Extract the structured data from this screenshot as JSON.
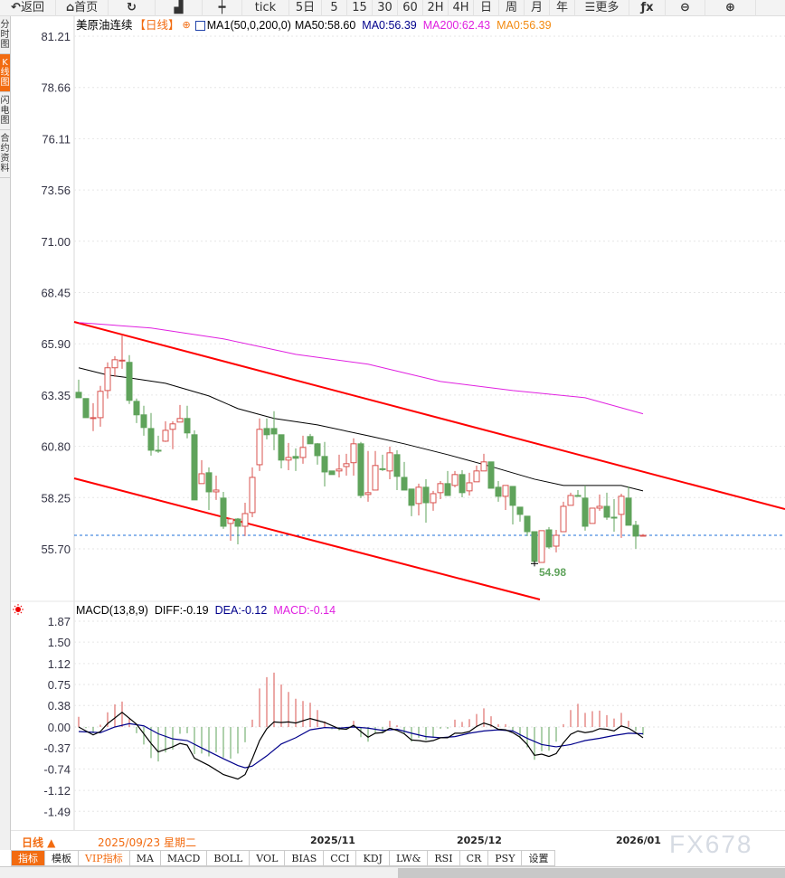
{
  "toolbar": {
    "items": [
      {
        "label": "返回",
        "icon": "back-arrow-icon"
      },
      {
        "label": "首页",
        "icon": "home-icon"
      },
      {
        "label": "",
        "icon": "refresh-icon"
      },
      {
        "label": "",
        "icon": "bar-chart-icon"
      },
      {
        "label": "",
        "icon": "candlestick-icon"
      },
      {
        "label": "tick"
      },
      {
        "label": "5日"
      },
      {
        "label": "5"
      },
      {
        "label": "15"
      },
      {
        "label": "30"
      },
      {
        "label": "60"
      },
      {
        "label": "2H"
      },
      {
        "label": "4H"
      },
      {
        "label": "日"
      },
      {
        "label": "周"
      },
      {
        "label": "月"
      },
      {
        "label": "年"
      },
      {
        "label": "更多",
        "icon": "menu-icon"
      },
      {
        "label": "",
        "icon": "fx-formula-icon"
      },
      {
        "label": "",
        "icon": "zoom-out-icon"
      },
      {
        "label": "",
        "icon": "zoom-in-icon"
      }
    ]
  },
  "side_tabs": [
    {
      "label": "分时图"
    },
    {
      "label": "K线图",
      "active": true
    },
    {
      "label": "闪电图"
    },
    {
      "label": "合约资料"
    }
  ],
  "main_header": {
    "symbol": "美原油连续",
    "period": "【日线】",
    "indicator": "MA1(50,0,200,0)",
    "ma50": "MA50:58.60",
    "ma0a": "MA0:56.39",
    "ma200": "MA200:62.43",
    "ma0b": "MA0:56.39"
  },
  "macd_header": {
    "name": "MACD(13,8,9)",
    "diff": "DIFF:-0.19",
    "dea": "DEA:-0.12",
    "macd": "MACD:-0.14"
  },
  "colors": {
    "up": "#d9534f",
    "down": "#5fa35b",
    "ma50": "#000000",
    "ma200": "#e020e0",
    "channel": "#ff0000",
    "dea": "#00008b",
    "accent": "#f26b10",
    "last_price_line": "#1e6fd9"
  },
  "chart_data": [
    {
      "type": "candlestick",
      "price_ticks": [
        "81.21",
        "78.66",
        "76.11",
        "73.56",
        "71.00",
        "68.45",
        "65.90",
        "63.35",
        "60.80",
        "58.25",
        "55.70"
      ],
      "ylim": [
        54.5,
        81.21
      ],
      "last_price": 56.39,
      "low_label": "54.98",
      "ohlc": [
        [
          63.5,
          64.13,
          63.23,
          63.23
        ],
        [
          63.19,
          63.19,
          62.24,
          62.24
        ],
        [
          62.24,
          62.96,
          61.57,
          62.24
        ],
        [
          62.24,
          63.82,
          61.79,
          63.55
        ],
        [
          63.59,
          64.99,
          63.19,
          64.72
        ],
        [
          64.72,
          65.3,
          64.27,
          65.12
        ],
        [
          65.08,
          66.38,
          64.67,
          65.1
        ],
        [
          64.99,
          65.35,
          62.92,
          63.1
        ],
        [
          63.05,
          63.19,
          61.97,
          62.38
        ],
        [
          62.38,
          62.83,
          61.34,
          61.75
        ],
        [
          61.7,
          62.47,
          60.35,
          60.62
        ],
        [
          60.62,
          61.34,
          60.49,
          60.58
        ],
        [
          61.07,
          62.06,
          61.03,
          61.61
        ],
        [
          61.66,
          62.06,
          60.67,
          61.93
        ],
        [
          62.02,
          62.87,
          62.02,
          62.2
        ],
        [
          62.2,
          62.83,
          61.21,
          61.48
        ],
        [
          61.39,
          61.61,
          58.15,
          58.15
        ],
        [
          58.96,
          60.13,
          58.96,
          59.45
        ],
        [
          59.5,
          59.77,
          57.65,
          58.55
        ],
        [
          58.55,
          59.36,
          58.15,
          58.64
        ],
        [
          58.24,
          58.55,
          56.71,
          56.84
        ],
        [
          56.98,
          57.25,
          56.12,
          57.2
        ],
        [
          57.2,
          57.25,
          55.94,
          56.84
        ],
        [
          56.84,
          58.01,
          56.35,
          57.47
        ],
        [
          57.52,
          59.77,
          57.29,
          59.27
        ],
        [
          59.9,
          62.2,
          59.59,
          61.66
        ],
        [
          61.7,
          62.2,
          61.16,
          61.39
        ],
        [
          61.7,
          62.56,
          60.62,
          61.43
        ],
        [
          61.39,
          61.39,
          59.72,
          60.13
        ],
        [
          60.13,
          60.98,
          59.63,
          60.26
        ],
        [
          60.31,
          60.71,
          59.59,
          60.22
        ],
        [
          60.26,
          61.34,
          59.95,
          60.76
        ],
        [
          61.3,
          61.43,
          60.94,
          60.94
        ],
        [
          60.94,
          60.98,
          59.9,
          60.35
        ],
        [
          60.31,
          61.03,
          58.82,
          59.54
        ],
        [
          59.59,
          59.59,
          59.41,
          59.41
        ],
        [
          59.59,
          60.4,
          59.27,
          59.68
        ],
        [
          59.81,
          60.44,
          59.36,
          59.95
        ],
        [
          60.0,
          61.21,
          59.36,
          60.94
        ],
        [
          60.94,
          61.03,
          58.24,
          58.37
        ],
        [
          58.42,
          60.58,
          58.06,
          58.51
        ],
        [
          58.64,
          60.58,
          58.64,
          59.86
        ],
        [
          59.7,
          60.4,
          59.59,
          59.66
        ],
        [
          59.59,
          60.8,
          59.18,
          60.49
        ],
        [
          60.4,
          60.62,
          58.64,
          59.32
        ],
        [
          59.27,
          60.04,
          58.64,
          58.64
        ],
        [
          58.69,
          58.69,
          57.34,
          57.88
        ],
        [
          57.97,
          58.96,
          57.38,
          58.78
        ],
        [
          58.78,
          59.18,
          57.02,
          58.01
        ],
        [
          58.01,
          58.6,
          57.61,
          58.46
        ],
        [
          58.51,
          59.09,
          58.19,
          58.96
        ],
        [
          58.96,
          59.59,
          58.37,
          58.37
        ],
        [
          58.87,
          59.59,
          58.78,
          59.41
        ],
        [
          59.41,
          59.63,
          58.28,
          58.51
        ],
        [
          58.6,
          59.5,
          58.37,
          59.0
        ],
        [
          59.05,
          59.86,
          59.05,
          59.59
        ],
        [
          59.59,
          60.44,
          59.59,
          60.04
        ],
        [
          60.04,
          60.04,
          58.73,
          58.73
        ],
        [
          58.78,
          59.09,
          58.06,
          58.33
        ],
        [
          58.33,
          58.87,
          57.65,
          58.87
        ],
        [
          58.82,
          58.82,
          56.93,
          57.88
        ],
        [
          57.79,
          57.79,
          57.07,
          57.43
        ],
        [
          57.34,
          57.34,
          56.35,
          56.57
        ],
        [
          56.57,
          56.57,
          54.98,
          55.09
        ],
        [
          55.04,
          56.62,
          55.04,
          56.62
        ],
        [
          56.66,
          56.8,
          55.72,
          55.81
        ],
        [
          55.85,
          56.66,
          55.54,
          56.39
        ],
        [
          56.57,
          58.06,
          56.57,
          57.83
        ],
        [
          57.88,
          58.51,
          57.88,
          58.37
        ],
        [
          58.37,
          58.64,
          58.33,
          58.33
        ],
        [
          58.24,
          58.87,
          56.62,
          56.84
        ],
        [
          56.98,
          57.74,
          56.98,
          57.74
        ],
        [
          57.74,
          58.42,
          57.61,
          57.83
        ],
        [
          57.83,
          58.51,
          57.16,
          57.29
        ],
        [
          57.29,
          58.19,
          56.57,
          57.27
        ],
        [
          57.43,
          58.46,
          56.26,
          58.33
        ],
        [
          58.24,
          58.82,
          56.89,
          56.89
        ],
        [
          56.89,
          57.11,
          55.72,
          56.35
        ],
        [
          56.39,
          56.45,
          56.35,
          56.39
        ]
      ],
      "ma50": [
        [
          0,
          64.72
        ],
        [
          4,
          64.36
        ],
        [
          7,
          64.22
        ],
        [
          12,
          63.95
        ],
        [
          18,
          63.32
        ],
        [
          22,
          62.69
        ],
        [
          27,
          62.2
        ],
        [
          33,
          61.88
        ],
        [
          40,
          61.34
        ],
        [
          45,
          60.94
        ],
        [
          51,
          60.4
        ],
        [
          57,
          59.81
        ],
        [
          63,
          59.18
        ],
        [
          67,
          58.87
        ],
        [
          75,
          58.87
        ],
        [
          78,
          58.6
        ]
      ],
      "ma200": [
        [
          0,
          66.97
        ],
        [
          10,
          66.7
        ],
        [
          20,
          66.16
        ],
        [
          30,
          65.39
        ],
        [
          40,
          64.9
        ],
        [
          50,
          64.04
        ],
        [
          60,
          63.59
        ],
        [
          70,
          63.23
        ],
        [
          78,
          62.43
        ]
      ]
    },
    {
      "type": "macd",
      "ticks": [
        "1.87",
        "1.50",
        "1.12",
        "0.75",
        "0.38",
        "0.00",
        "-0.37",
        "-0.74",
        "-1.12",
        "-1.49"
      ],
      "histogram": [
        0.18,
        -0.02,
        -0.11,
        0.04,
        0.26,
        0.4,
        0.45,
        0.15,
        -0.11,
        -0.31,
        -0.55,
        -0.61,
        -0.45,
        -0.4,
        -0.12,
        -0.11,
        -0.48,
        -0.47,
        -0.52,
        -0.45,
        -0.54,
        -0.56,
        -0.47,
        -0.27,
        0.13,
        0.68,
        0.88,
        0.96,
        0.75,
        0.62,
        0.5,
        0.46,
        0.43,
        0.3,
        0.1,
        -0.04,
        -0.06,
        -0.03,
        0.11,
        -0.18,
        -0.26,
        -0.12,
        -0.1,
        0.11,
        0.03,
        -0.12,
        -0.26,
        -0.19,
        -0.23,
        -0.19,
        -0.03,
        -0.03,
        0.13,
        0.09,
        0.14,
        0.23,
        0.33,
        0.19,
        0.05,
        0.05,
        -0.07,
        -0.2,
        -0.36,
        -0.58,
        -0.43,
        -0.42,
        -0.26,
        0.05,
        0.3,
        0.41,
        0.25,
        0.28,
        0.29,
        0.21,
        0.15,
        0.25,
        0.11,
        -0.07,
        -0.14
      ],
      "diff": [
        [
          0,
          0.0
        ],
        [
          2,
          -0.14
        ],
        [
          3,
          -0.08
        ],
        [
          4,
          0.06
        ],
        [
          6,
          0.26
        ],
        [
          8,
          0.05
        ],
        [
          10,
          -0.29
        ],
        [
          11,
          -0.44
        ],
        [
          13,
          -0.35
        ],
        [
          14,
          -0.29
        ],
        [
          15,
          -0.32
        ],
        [
          16,
          -0.55
        ],
        [
          18,
          -0.68
        ],
        [
          20,
          -0.84
        ],
        [
          22,
          -0.92
        ],
        [
          23,
          -0.84
        ],
        [
          24,
          -0.56
        ],
        [
          25,
          -0.24
        ],
        [
          26,
          -0.03
        ],
        [
          27,
          0.09
        ],
        [
          28,
          0.08
        ],
        [
          29,
          0.09
        ],
        [
          30,
          0.07
        ],
        [
          32,
          0.15
        ],
        [
          34,
          0.08
        ],
        [
          36,
          -0.03
        ],
        [
          37,
          -0.04
        ],
        [
          38,
          0.03
        ],
        [
          39,
          -0.08
        ],
        [
          40,
          -0.18
        ],
        [
          41,
          -0.11
        ],
        [
          42,
          -0.1
        ],
        [
          43,
          -0.02
        ],
        [
          44,
          -0.06
        ],
        [
          45,
          -0.12
        ],
        [
          46,
          -0.23
        ],
        [
          47,
          -0.24
        ],
        [
          48,
          -0.26
        ],
        [
          49,
          -0.24
        ],
        [
          50,
          -0.19
        ],
        [
          51,
          -0.19
        ],
        [
          52,
          -0.11
        ],
        [
          53,
          -0.11
        ],
        [
          54,
          -0.08
        ],
        [
          55,
          0.01
        ],
        [
          56,
          0.07
        ],
        [
          57,
          0.03
        ],
        [
          58,
          -0.04
        ],
        [
          59,
          -0.05
        ],
        [
          60,
          -0.1
        ],
        [
          61,
          -0.18
        ],
        [
          62,
          -0.31
        ],
        [
          63,
          -0.5
        ],
        [
          64,
          -0.48
        ],
        [
          65,
          -0.52
        ],
        [
          66,
          -0.47
        ],
        [
          67,
          -0.28
        ],
        [
          68,
          -0.13
        ],
        [
          69,
          -0.07
        ],
        [
          70,
          -0.1
        ],
        [
          71,
          -0.08
        ],
        [
          72,
          -0.03
        ],
        [
          73,
          -0.04
        ],
        [
          74,
          -0.07
        ],
        [
          75,
          0.02
        ],
        [
          76,
          -0.02
        ],
        [
          77,
          -0.1
        ],
        [
          78,
          -0.19
        ]
      ],
      "dea": [
        [
          0,
          -0.08
        ],
        [
          3,
          -0.1
        ],
        [
          5,
          0.0
        ],
        [
          7,
          0.06
        ],
        [
          9,
          0.02
        ],
        [
          11,
          -0.12
        ],
        [
          13,
          -0.21
        ],
        [
          15,
          -0.24
        ],
        [
          17,
          -0.37
        ],
        [
          20,
          -0.56
        ],
        [
          22,
          -0.68
        ],
        [
          23,
          -0.72
        ],
        [
          24,
          -0.69
        ],
        [
          26,
          -0.51
        ],
        [
          28,
          -0.3
        ],
        [
          30,
          -0.19
        ],
        [
          32,
          -0.05
        ],
        [
          34,
          -0.01
        ],
        [
          36,
          -0.02
        ],
        [
          38,
          0.0
        ],
        [
          40,
          -0.02
        ],
        [
          42,
          -0.06
        ],
        [
          44,
          -0.04
        ],
        [
          46,
          -0.11
        ],
        [
          48,
          -0.17
        ],
        [
          50,
          -0.19
        ],
        [
          52,
          -0.17
        ],
        [
          54,
          -0.11
        ],
        [
          56,
          -0.07
        ],
        [
          58,
          -0.05
        ],
        [
          60,
          -0.07
        ],
        [
          62,
          -0.2
        ],
        [
          64,
          -0.31
        ],
        [
          66,
          -0.35
        ],
        [
          68,
          -0.31
        ],
        [
          70,
          -0.24
        ],
        [
          72,
          -0.2
        ],
        [
          74,
          -0.15
        ],
        [
          76,
          -0.11
        ],
        [
          78,
          -0.12
        ]
      ]
    }
  ],
  "date_axis": {
    "period": "日线 ▲",
    "cursor_date": "2025/09/23 星期二",
    "labels": [
      "2025/11",
      "2025/12",
      "2026/01"
    ]
  },
  "bottom_tabs": [
    {
      "label": "指标",
      "active": true
    },
    {
      "label": "模板"
    },
    {
      "label": "VIP指标",
      "vip": true
    },
    {
      "label": "MA"
    },
    {
      "label": "MACD"
    },
    {
      "label": "BOLL"
    },
    {
      "label": "VOL"
    },
    {
      "label": "BIAS"
    },
    {
      "label": "CCI"
    },
    {
      "label": "KDJ"
    },
    {
      "label": "LW&"
    },
    {
      "label": "RSI"
    },
    {
      "label": "CR"
    },
    {
      "label": "PSY"
    },
    {
      "label": "设置"
    }
  ],
  "watermark": "FX678"
}
